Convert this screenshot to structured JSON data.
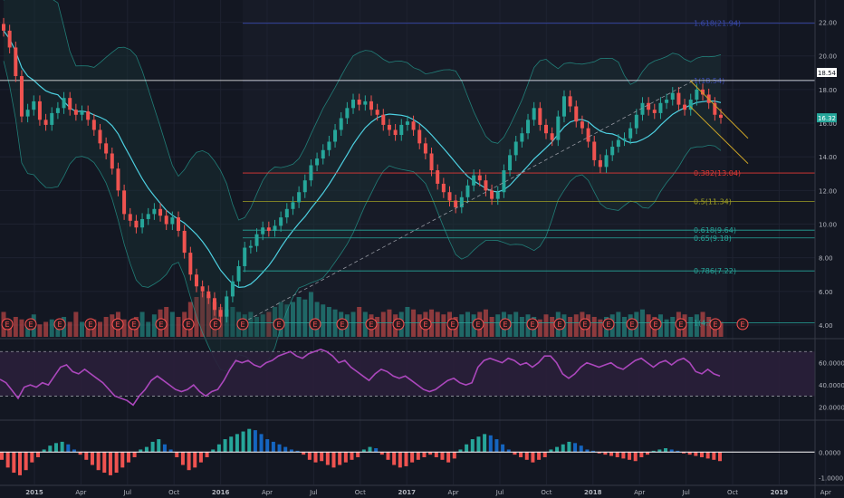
{
  "colors": {
    "background": "#131722",
    "grid": "#1e2230",
    "up": "#26a69a",
    "down": "#ef5350",
    "upVolume": "#26a69a",
    "downVolume": "#ef5350",
    "bollinger": "#26a69a",
    "bollingerFill": "#1a3a3a",
    "rsi": "#ab47bc",
    "rsiFill": "#2a1f3a",
    "macdUp": "#26a69a",
    "macdDown": "#ef5350",
    "macdHigh": "#1565c0",
    "fibTop": "#3949ab",
    "fib382": "#e53935",
    "fib500": "#9e9d24",
    "fib618": "#26a69a",
    "fib786": "#26a69a",
    "priceLabelBg": "#26a69a",
    "channel": "#c9a227",
    "axisText": "#b2b5be"
  },
  "chart_data": {
    "type": "candlestick",
    "price_axis": {
      "ticks": [
        "22.00",
        "20.00",
        "18.00",
        "16.00",
        "14.00",
        "12.00",
        "10.00",
        "8.00",
        "6.00",
        "4.00"
      ],
      "range": [
        3.3,
        23
      ]
    },
    "time_axis": {
      "ticks": [
        "2015",
        "Apr",
        "Jul",
        "Oct",
        "2016",
        "Apr",
        "Jul",
        "Oct",
        "2017",
        "Apr",
        "Jul",
        "Oct",
        "2018",
        "Apr",
        "Jul",
        "Oct",
        "2019",
        "Apr"
      ]
    },
    "current_price": "16.32",
    "horizontal_level": "18.54",
    "fib_levels": [
      {
        "label": "1.618(21.94)",
        "value": 21.94,
        "color_key": "fibTop"
      },
      {
        "label": "1(18.54)",
        "value": 18.54,
        "color_key": "fibTop"
      },
      {
        "label": "0.382(13.04)",
        "value": 13.04,
        "color_key": "fib382"
      },
      {
        "label": "0.5(11.34)",
        "value": 11.34,
        "color_key": "fib500"
      },
      {
        "label": "0.618(9.64)",
        "value": 9.64,
        "color_key": "fib618"
      },
      {
        "label": "0.65(9.18)",
        "value": 9.18,
        "color_key": "fib618"
      },
      {
        "label": "0.786(7.22)",
        "value": 7.22,
        "color_key": "fib786"
      },
      {
        "label": "1(4.14)",
        "value": 4.14,
        "color_key": "fib786"
      }
    ],
    "close_series": [
      21.5,
      20.5,
      18.8,
      16.4,
      16.8,
      17.3,
      16.2,
      15.9,
      16.6,
      16.9,
      17.5,
      16.8,
      16.5,
      16.7,
      16.2,
      15.6,
      14.8,
      14.2,
      13.3,
      12.0,
      10.6,
      10.2,
      9.8,
      10.3,
      10.6,
      10.9,
      10.5,
      10.0,
      10.4,
      9.6,
      8.3,
      7.0,
      6.3,
      6.0,
      5.6,
      4.9,
      4.5,
      5.7,
      6.6,
      7.5,
      8.6,
      8.7,
      9.4,
      9.8,
      9.6,
      9.9,
      10.4,
      10.9,
      11.3,
      11.9,
      12.6,
      13.5,
      13.9,
      14.4,
      14.9,
      15.6,
      16.3,
      16.9,
      17.4,
      17.1,
      17.3,
      16.8,
      16.5,
      15.9,
      15.6,
      15.3,
      15.9,
      16.1,
      15.6,
      14.8,
      14.2,
      13.2,
      12.4,
      11.9,
      11.4,
      11.0,
      11.6,
      12.3,
      12.9,
      12.6,
      12.0,
      11.5,
      11.9,
      13.2,
      14.1,
      14.9,
      15.4,
      16.2,
      16.9,
      15.9,
      15.4,
      15.0,
      16.4,
      17.6,
      17.0,
      16.1,
      15.7,
      14.9,
      13.8,
      13.4,
      14.1,
      14.6,
      15.0,
      15.1,
      15.7,
      16.5,
      17.2,
      16.8,
      16.6,
      17.2,
      17.4,
      17.8,
      17.1,
      16.8,
      17.4,
      18.0,
      17.7,
      17.2,
      16.5,
      16.32
    ],
    "volume_series": [
      0.5,
      0.3,
      0.4,
      0.35,
      0.3,
      0.45,
      0.25,
      0.3,
      0.35,
      0.3,
      0.4,
      0.3,
      0.5,
      0.3,
      0.25,
      0.35,
      0.3,
      0.4,
      0.45,
      0.5,
      0.35,
      0.3,
      0.4,
      0.5,
      0.3,
      0.45,
      0.55,
      0.6,
      0.5,
      0.4,
      0.5,
      0.7,
      0.8,
      0.9,
      0.85,
      0.7,
      0.6,
      0.55,
      0.6,
      0.5,
      0.45,
      0.5,
      0.4,
      0.45,
      0.5,
      0.6,
      0.7,
      0.65,
      0.7,
      0.8,
      0.75,
      0.9,
      0.7,
      0.65,
      0.6,
      0.55,
      0.5,
      0.45,
      0.5,
      0.6,
      0.5,
      0.45,
      0.4,
      0.5,
      0.55,
      0.45,
      0.5,
      0.6,
      0.55,
      0.45,
      0.5,
      0.55,
      0.5,
      0.45,
      0.5,
      0.4,
      0.45,
      0.5,
      0.45,
      0.5,
      0.55,
      0.4,
      0.45,
      0.5,
      0.45,
      0.5,
      0.4,
      0.45,
      0.4,
      0.35,
      0.45,
      0.4,
      0.5,
      0.45,
      0.4,
      0.45,
      0.5,
      0.45,
      0.4,
      0.35,
      0.4,
      0.45,
      0.5,
      0.4,
      0.45,
      0.5,
      0.55,
      0.45,
      0.4,
      0.45,
      0.35,
      0.4,
      0.5,
      0.45,
      0.4,
      0.45,
      0.5,
      0.4,
      0.35,
      0.3
    ],
    "rsi": {
      "levels": [
        70,
        30
      ],
      "ticks": [
        "60.0000",
        "40.0000",
        "20.0000"
      ],
      "range": [
        10,
        80
      ],
      "series": [
        45,
        42,
        35,
        28,
        38,
        40,
        38,
        42,
        40,
        48,
        56,
        58,
        52,
        50,
        54,
        50,
        46,
        42,
        36,
        30,
        28,
        26,
        22,
        30,
        36,
        44,
        48,
        44,
        40,
        36,
        34,
        36,
        40,
        34,
        30,
        34,
        36,
        44,
        54,
        62,
        60,
        62,
        58,
        56,
        60,
        62,
        66,
        68,
        70,
        66,
        64,
        68,
        70,
        72,
        70,
        66,
        60,
        62,
        56,
        52,
        48,
        44,
        50,
        54,
        52,
        48,
        46,
        48,
        44,
        40,
        36,
        34,
        36,
        40,
        44,
        46,
        42,
        40,
        42,
        56,
        62,
        64,
        62,
        60,
        64,
        62,
        58,
        60,
        56,
        60,
        66,
        66,
        60,
        50,
        46,
        50,
        56,
        60,
        58,
        56,
        58,
        60,
        56,
        54,
        58,
        62,
        64,
        60,
        56,
        60,
        62,
        58,
        62,
        64,
        60,
        52,
        50,
        54,
        50,
        48
      ]
    },
    "macd": {
      "ticks": [
        "0.0000",
        "-1.0000"
      ],
      "range": [
        -1.15,
        1.1
      ],
      "series": [
        -0.3,
        -0.6,
        -0.8,
        -0.9,
        -0.7,
        -0.4,
        -0.2,
        0.1,
        0.25,
        0.35,
        0.4,
        0.3,
        0.1,
        -0.1,
        -0.3,
        -0.5,
        -0.7,
        -0.8,
        -0.9,
        -0.8,
        -0.6,
        -0.4,
        -0.2,
        0.1,
        0.2,
        0.4,
        0.5,
        0.3,
        0.1,
        -0.2,
        -0.5,
        -0.7,
        -0.6,
        -0.4,
        -0.2,
        0.1,
        0.3,
        0.5,
        0.6,
        0.7,
        0.8,
        0.9,
        0.85,
        0.7,
        0.5,
        0.4,
        0.3,
        0.2,
        0.1,
        0.05,
        -0.1,
        -0.3,
        -0.4,
        -0.35,
        -0.5,
        -0.6,
        -0.5,
        -0.4,
        -0.3,
        -0.2,
        0.1,
        0.2,
        0.15,
        -0.1,
        -0.3,
        -0.5,
        -0.6,
        -0.55,
        -0.4,
        -0.3,
        -0.2,
        -0.1,
        -0.2,
        -0.3,
        -0.4,
        -0.25,
        0.1,
        0.3,
        0.5,
        0.6,
        0.7,
        0.65,
        0.5,
        0.3,
        0.1,
        -0.1,
        -0.2,
        -0.3,
        -0.4,
        -0.3,
        -0.2,
        0.1,
        0.2,
        0.3,
        0.4,
        0.35,
        0.25,
        0.1,
        0.05,
        -0.05,
        -0.1,
        -0.15,
        -0.2,
        -0.25,
        -0.3,
        -0.35,
        -0.2,
        -0.1,
        0.05,
        0.1,
        0.15,
        0.1,
        0.05,
        -0.05,
        -0.1,
        -0.15,
        -0.2,
        -0.25,
        -0.3,
        -0.35
      ]
    },
    "earnings_marker": "E"
  }
}
